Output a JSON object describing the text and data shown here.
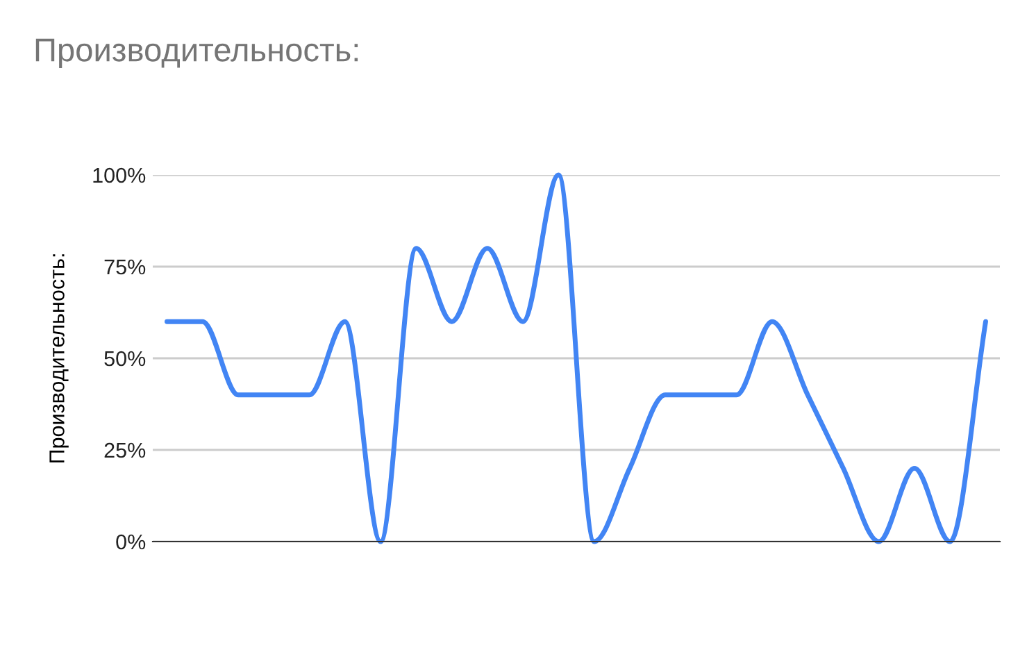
{
  "chart_data": {
    "type": "line",
    "title": "Производительность:",
    "ylabel": "Производительность:",
    "categories": [
      null,
      null,
      null,
      null,
      null,
      null,
      null,
      null,
      null,
      null,
      null,
      null,
      null,
      null,
      null,
      null,
      null,
      null,
      null,
      null,
      null,
      null,
      null,
      null
    ],
    "series": [
      {
        "color": "#4285f4",
        "values": [
          60,
          60,
          40,
          40,
          40,
          60,
          0,
          80,
          60,
          80,
          60,
          100,
          0,
          20,
          40,
          40,
          40,
          60,
          40,
          20,
          0,
          20,
          0,
          60
        ]
      }
    ],
    "ylim": [
      0,
      100
    ],
    "yticks": [
      {
        "value": 0,
        "label": "0%"
      },
      {
        "value": 25,
        "label": "25%"
      },
      {
        "value": 50,
        "label": "50%"
      },
      {
        "value": 75,
        "label": "75%"
      },
      {
        "value": 100,
        "label": "100%"
      }
    ],
    "grid": "y",
    "marker": "none",
    "line_style": "solid"
  }
}
